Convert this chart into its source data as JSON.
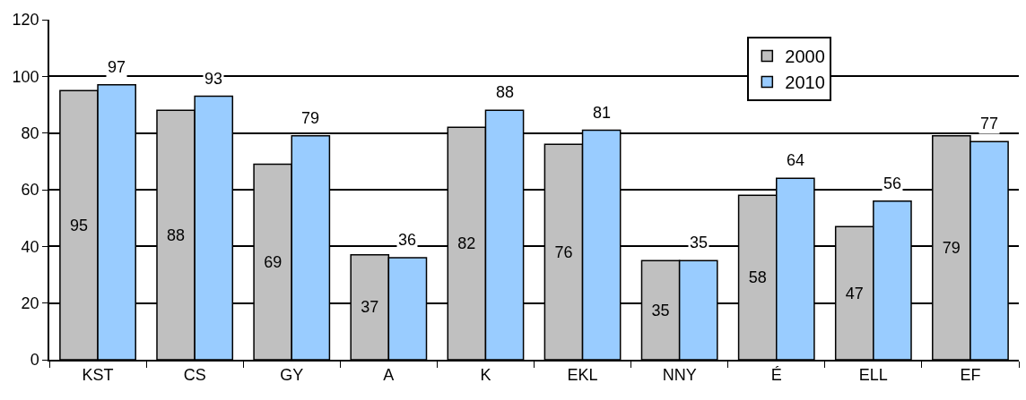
{
  "chart_data": {
    "type": "bar",
    "categories": [
      "KST",
      "CS",
      "GY",
      "A",
      "K",
      "EKL",
      "NNY",
      "É",
      "ELL",
      "EF"
    ],
    "series": [
      {
        "name": "2000",
        "color": "#c0c0c0",
        "values": [
          95,
          88,
          69,
          37,
          82,
          76,
          35,
          58,
          47,
          79
        ]
      },
      {
        "name": "2010",
        "color": "#99ccff",
        "values": [
          97,
          93,
          79,
          36,
          88,
          81,
          35,
          64,
          56,
          77
        ]
      }
    ],
    "ylim": [
      0,
      120
    ],
    "yticks": [
      0,
      20,
      40,
      60,
      80,
      100,
      120
    ],
    "grid": "y",
    "legend": "top right",
    "data_labels": true
  }
}
